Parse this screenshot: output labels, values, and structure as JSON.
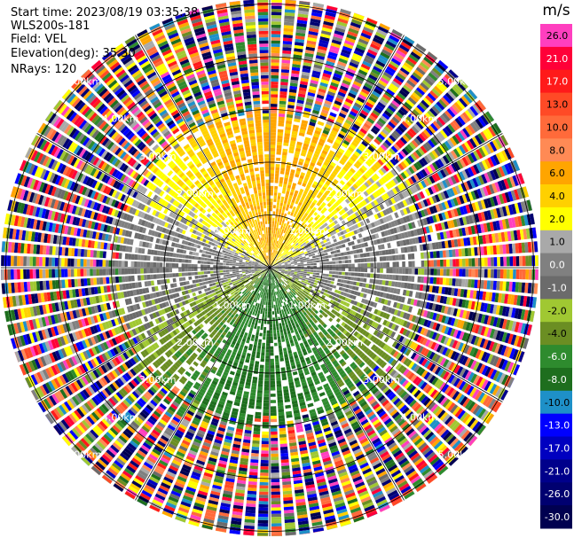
{
  "info": {
    "start_time": "Start time: 2023/08/19 03:35:38",
    "instrument": "WLS200s-181",
    "field": "Field: VEL",
    "elevation": "Elevation(deg): 35.30",
    "nrays": "NRays: 120"
  },
  "chart_data": {
    "type": "heatmap",
    "projection": "polar",
    "title": "",
    "range_rings_km": [
      1.0,
      2.0,
      3.0,
      4.0,
      5.0
    ],
    "range_ring_labels": [
      "1.00km",
      "2.00km",
      "3.00km",
      "4.00km",
      "5.00km"
    ],
    "nrays": 120,
    "colorbar": {
      "unit": "m/s",
      "ticks": [
        "26.0",
        "21.0",
        "17.0",
        "13.0",
        "10.0",
        "8.0",
        "6.0",
        "4.0",
        "2.0",
        "1.0",
        "0.0",
        "-1.0",
        "-2.0",
        "-4.0",
        "-6.0",
        "-8.0",
        "-10.0",
        "-13.0",
        "-17.0",
        "-21.0",
        "-26.0",
        "-30.0"
      ],
      "colors": [
        "#ff3fbf",
        "#ff0038",
        "#ff1a1a",
        "#ff4a26",
        "#ff6a3a",
        "#ff8a55",
        "#ffa500",
        "#ffd000",
        "#ffff00",
        "#a9a9a9",
        "#808080",
        "#6b6b6b",
        "#a0c832",
        "#6b8e23",
        "#2e8b2e",
        "#1e6e1e",
        "#1e90c8",
        "#0000ff",
        "#0000c0",
        "#00008b",
        "#000070",
        "#000050"
      ]
    },
    "velocity_pattern_near_range": {
      "north_sector": 6.0,
      "northeast_sector": 2.0,
      "east": 0.0,
      "southeast_sector": -2.0,
      "south_sector": -6.0,
      "southwest_sector": -2.0,
      "west": 0.0,
      "northwest_sector": 2.0
    },
    "noise_beyond_km": 3.0
  }
}
